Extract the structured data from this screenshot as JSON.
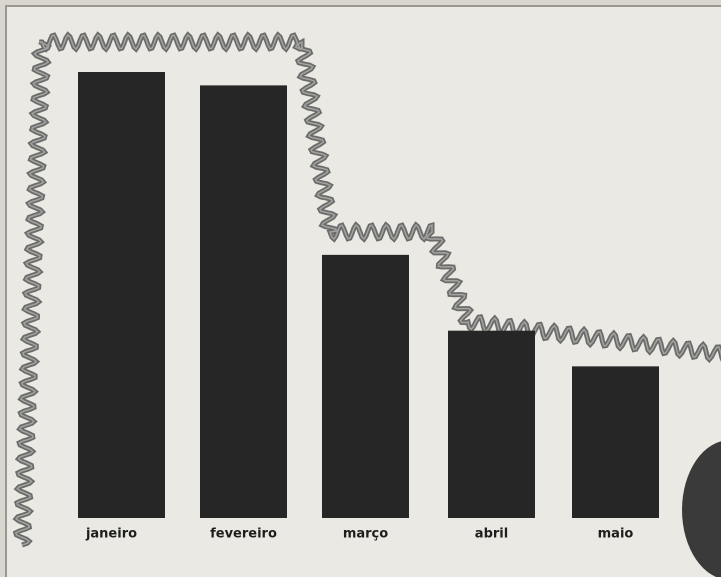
{
  "chart_data": {
    "type": "bar",
    "categories": [
      "janeiro",
      "fevereiro",
      "março",
      "abril",
      "maio"
    ],
    "values": [
      100,
      97,
      59,
      42,
      34
    ],
    "color": "#262626"
  }
}
